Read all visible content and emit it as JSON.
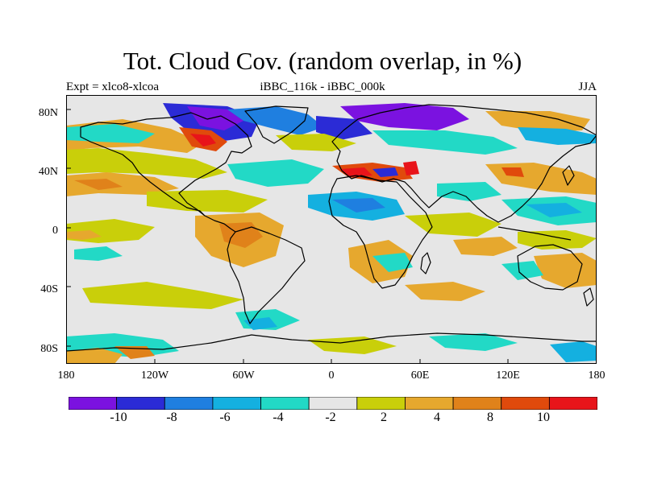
{
  "title": "Tot. Cloud Cov. (random overlap, in %)",
  "subtitle_left": "Expt = xlco8-xlcoa",
  "subtitle_center": "iBBC_116k - iBBC_000k",
  "subtitle_right": "JJA",
  "y_ticks": [
    "80N",
    "40N",
    "0",
    "40S",
    "80S"
  ],
  "x_ticks": [
    "180",
    "120W",
    "60W",
    "0",
    "60E",
    "120E",
    "180"
  ],
  "colorbar": {
    "colors": [
      "#7b12e0",
      "#2b2bd6",
      "#1f7fe0",
      "#14b0e0",
      "#22d9c6",
      "#e6e6e6",
      "#c9cf0a",
      "#e6a82e",
      "#e0821a",
      "#e04a0c",
      "#e8141a"
    ],
    "labels": [
      "-10",
      "-8",
      "-6",
      "-4",
      "-2",
      "2",
      "4",
      "8",
      "10"
    ]
  },
  "colors": {
    "background": "#e6e6e6",
    "coast": "#000000"
  }
}
